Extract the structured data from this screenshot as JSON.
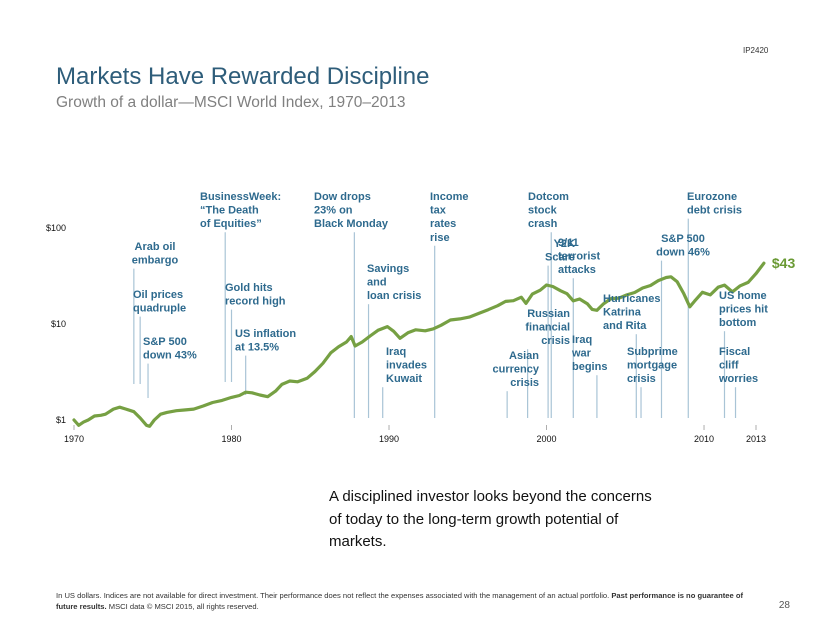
{
  "slide": {
    "code": "IP2420",
    "title": "Markets Have Rewarded Discipline",
    "subtitle": "Growth of a dollar—MSCI World Index, 1970–2013",
    "caption": "A disciplined investor looks beyond the concerns of today to the long-term growth potential of markets.",
    "footnote_regular_1": "In US dollars. Indices are not available for direct investment. Their performance does not reflect the expenses associated with the management of an actual portfolio. ",
    "footnote_bold": "Past performance is no guarantee of future results.",
    "footnote_regular_2": " MSCI data © MSCI 2015, all rights reserved.",
    "page_number": "28"
  },
  "chart_data": {
    "type": "line",
    "title": "",
    "xlabel": "",
    "ylabel": "",
    "y_scale": "log",
    "ylim": [
      0.8,
      100
    ],
    "xlim": [
      1970,
      2013.8
    ],
    "line_color": "#76a043",
    "annotation_color": "#2e6a8e",
    "line_stroke_color": "#a9c4d6",
    "x_ticks": [
      {
        "value": 1970,
        "label": "1970"
      },
      {
        "value": 1980,
        "label": "1980"
      },
      {
        "value": 1990,
        "label": "1990"
      },
      {
        "value": 2000,
        "label": "2000"
      },
      {
        "value": 2010,
        "label": "2010"
      },
      {
        "value": 2013.3,
        "label": "2013"
      }
    ],
    "y_ticks": [
      {
        "value": 1,
        "label": "$1"
      },
      {
        "value": 10,
        "label": "$10"
      },
      {
        "value": 100,
        "label": "$100"
      }
    ],
    "end_label": {
      "text": "$43",
      "value": 43,
      "color": "#6a9a34"
    },
    "series": [
      {
        "values": [
          [
            1970.0,
            1.0
          ],
          [
            1970.3,
            0.88
          ],
          [
            1970.6,
            0.95
          ],
          [
            1970.9,
            1.0
          ],
          [
            1971.3,
            1.1
          ],
          [
            1971.7,
            1.12
          ],
          [
            1972.0,
            1.15
          ],
          [
            1972.5,
            1.3
          ],
          [
            1972.9,
            1.36
          ],
          [
            1973.3,
            1.3
          ],
          [
            1973.8,
            1.22
          ],
          [
            1974.2,
            1.05
          ],
          [
            1974.6,
            0.88
          ],
          [
            1974.8,
            0.86
          ],
          [
            1975.1,
            1.0
          ],
          [
            1975.5,
            1.15
          ],
          [
            1975.9,
            1.2
          ],
          [
            1976.5,
            1.25
          ],
          [
            1977.0,
            1.27
          ],
          [
            1977.6,
            1.3
          ],
          [
            1978.2,
            1.4
          ],
          [
            1978.8,
            1.52
          ],
          [
            1979.4,
            1.6
          ],
          [
            1980.0,
            1.72
          ],
          [
            1980.5,
            1.8
          ],
          [
            1980.9,
            1.95
          ],
          [
            1981.3,
            1.92
          ],
          [
            1981.8,
            1.82
          ],
          [
            1982.3,
            1.75
          ],
          [
            1982.8,
            2.0
          ],
          [
            1983.2,
            2.35
          ],
          [
            1983.7,
            2.55
          ],
          [
            1984.2,
            2.5
          ],
          [
            1984.8,
            2.72
          ],
          [
            1985.3,
            3.2
          ],
          [
            1985.8,
            3.9
          ],
          [
            1986.3,
            5.0
          ],
          [
            1986.8,
            5.8
          ],
          [
            1987.3,
            6.5
          ],
          [
            1987.6,
            7.4
          ],
          [
            1987.85,
            5.9
          ],
          [
            1988.3,
            6.5
          ],
          [
            1988.8,
            7.5
          ],
          [
            1989.3,
            8.6
          ],
          [
            1989.9,
            9.4
          ],
          [
            1990.3,
            8.4
          ],
          [
            1990.7,
            7.1
          ],
          [
            1991.2,
            8.1
          ],
          [
            1991.7,
            8.7
          ],
          [
            1992.3,
            8.5
          ],
          [
            1992.8,
            8.9
          ],
          [
            1993.3,
            9.7
          ],
          [
            1993.9,
            11.0
          ],
          [
            1994.5,
            11.3
          ],
          [
            1995.1,
            11.8
          ],
          [
            1995.7,
            12.9
          ],
          [
            1996.3,
            14.1
          ],
          [
            1996.9,
            15.5
          ],
          [
            1997.4,
            17.2
          ],
          [
            1997.9,
            17.5
          ],
          [
            1998.4,
            19.0
          ],
          [
            1998.7,
            16.4
          ],
          [
            1999.1,
            20.5
          ],
          [
            1999.6,
            22.5
          ],
          [
            2000.0,
            25.5
          ],
          [
            2000.4,
            24.6
          ],
          [
            2000.9,
            22.2
          ],
          [
            2001.3,
            20.7
          ],
          [
            2001.7,
            17.4
          ],
          [
            2002.1,
            18.2
          ],
          [
            2002.6,
            16.2
          ],
          [
            2002.9,
            14.2
          ],
          [
            2003.2,
            13.9
          ],
          [
            2003.6,
            16.1
          ],
          [
            2004.1,
            18.4
          ],
          [
            2004.6,
            18.6
          ],
          [
            2005.1,
            20.1
          ],
          [
            2005.6,
            21.3
          ],
          [
            2006.1,
            23.7
          ],
          [
            2006.6,
            25.2
          ],
          [
            2007.1,
            28.3
          ],
          [
            2007.6,
            30.5
          ],
          [
            2007.9,
            31.0
          ],
          [
            2008.3,
            27.5
          ],
          [
            2008.7,
            21.0
          ],
          [
            2009.1,
            15.1
          ],
          [
            2009.4,
            17.3
          ],
          [
            2009.9,
            21.4
          ],
          [
            2010.4,
            20.1
          ],
          [
            2010.9,
            24.2
          ],
          [
            2011.3,
            25.4
          ],
          [
            2011.8,
            21.6
          ],
          [
            2012.3,
            25.0
          ],
          [
            2012.8,
            27.1
          ],
          [
            2013.3,
            33.5
          ],
          [
            2013.8,
            43.0
          ]
        ]
      }
    ],
    "annotations": [
      {
        "x": 1973.8,
        "lines": [
          "Arab oil",
          "embargo"
        ],
        "align": "middle"
      },
      {
        "x": 1974.2,
        "lines": [
          "Oil prices",
          "quadruple"
        ],
        "align": "start"
      },
      {
        "x": 1974.7,
        "lines": [
          "S&P 500",
          "down 43%"
        ],
        "align": "start"
      },
      {
        "x": 1979.6,
        "lines": [
          "BusinessWeek:",
          "“The Death",
          "of Equities”"
        ],
        "align": "start"
      },
      {
        "x": 1980.0,
        "lines": [
          "Gold hits",
          "record high"
        ],
        "align": "start"
      },
      {
        "x": 1980.9,
        "lines": [
          "US inflation",
          "at 13.5%"
        ],
        "align": "start"
      },
      {
        "x": 1987.8,
        "lines": [
          "Dow drops",
          "23% on",
          "Black Monday"
        ],
        "align": "start"
      },
      {
        "x": 1988.7,
        "lines": [
          "Savings",
          "and",
          "loan crisis"
        ],
        "align": "start"
      },
      {
        "x": 1989.6,
        "lines": [
          "Iraq",
          "invades",
          "Kuwait"
        ],
        "align": "start"
      },
      {
        "x": 1992.9,
        "lines": [
          "Income",
          "tax",
          "rates",
          "rise"
        ],
        "align": "start"
      },
      {
        "x": 1997.5,
        "lines": [
          "Asian",
          "currency",
          "crisis"
        ],
        "align": "end"
      },
      {
        "x": 1998.8,
        "lines": [
          "Russian",
          "financial",
          "crisis"
        ],
        "align": "end"
      },
      {
        "x": 2000.1,
        "lines": [
          "Y2K",
          "Scare"
        ],
        "align": "end"
      },
      {
        "x": 2000.3,
        "lines": [
          "Dotcom",
          "stock",
          "crash"
        ],
        "align": "start"
      },
      {
        "x": 2001.7,
        "lines": [
          "9/11",
          "terrorist",
          "attacks"
        ],
        "align": "start"
      },
      {
        "x": 2003.2,
        "lines": [
          "Iraq",
          "war",
          "begins"
        ],
        "align": "start"
      },
      {
        "x": 2005.7,
        "lines": [
          "Hurricanes",
          "Katrina",
          "and Rita"
        ],
        "align": "start"
      },
      {
        "x": 2006.0,
        "lines": [
          "Subprime",
          "mortgage",
          "crisis"
        ],
        "align": "start"
      },
      {
        "x": 2007.3,
        "lines": [
          "S&P 500",
          "down 46%"
        ],
        "align": "middle"
      },
      {
        "x": 2009.0,
        "lines": [
          "Eurozone",
          "debt crisis"
        ],
        "align": "start"
      },
      {
        "x": 2011.3,
        "lines": [
          "US home",
          "prices hit",
          "bottom"
        ],
        "align": "start"
      },
      {
        "x": 2012.0,
        "lines": [
          "Fiscal",
          "cliff",
          "worries"
        ],
        "align": "start"
      }
    ]
  }
}
